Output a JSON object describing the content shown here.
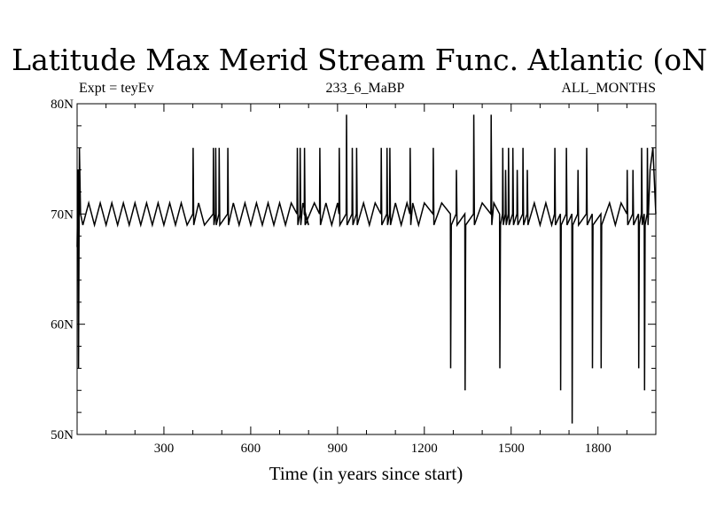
{
  "chart_data": {
    "type": "line",
    "title": "Latitude Max Merid Stream Func. Atlantic (oN)",
    "subtitle_left": "Expt = teyEv",
    "subtitle_center": "233_6_MaBP",
    "subtitle_right": "ALL_MONTHS",
    "xlabel": "Time (in years since start)",
    "ylabel": "",
    "xlim": [
      0,
      2000
    ],
    "ylim": [
      50,
      80
    ],
    "x_ticks": [
      300,
      600,
      900,
      1200,
      1500,
      1800
    ],
    "x_tick_labels": [
      "300",
      "600",
      "900",
      "1200",
      "1500",
      "1800"
    ],
    "y_ticks": [
      50,
      60,
      70,
      80
    ],
    "y_tick_labels": [
      "50N",
      "60N",
      "70N",
      "80N"
    ],
    "grid": false,
    "legend": "none",
    "line_color": "#000000",
    "series": [
      {
        "x": [
          0,
          3,
          5,
          8,
          12,
          20,
          40,
          60,
          80,
          100,
          120,
          140,
          160,
          180,
          200,
          220,
          240,
          260,
          280,
          300,
          320,
          340,
          360,
          380,
          400,
          401,
          403,
          420,
          440,
          470,
          471,
          473,
          478,
          479,
          481,
          490,
          491,
          493,
          520,
          521,
          523,
          540,
          560,
          580,
          600,
          620,
          640,
          660,
          680,
          700,
          720,
          740,
          760,
          761,
          763,
          770,
          771,
          773,
          780,
          800,
          785,
          786,
          788,
          820,
          838,
          839,
          841,
          860,
          880,
          900,
          905,
          906,
          908,
          930,
          931,
          933,
          950,
          951,
          953,
          965,
          966,
          968,
          990,
          1010,
          1030,
          1050,
          1051,
          1053,
          1070,
          1071,
          1073,
          1080,
          1081,
          1083,
          1100,
          1120,
          1140,
          1150,
          1151,
          1153,
          1160,
          1180,
          1200,
          1230,
          1231,
          1233,
          1260,
          1290,
          1291,
          1293,
          1310,
          1311,
          1313,
          1340,
          1341,
          1343,
          1370,
          1371,
          1373,
          1400,
          1430,
          1431,
          1433,
          1440,
          1460,
          1461,
          1463,
          1470,
          1471,
          1473,
          1480,
          1481,
          1483,
          1490,
          1491,
          1493,
          1505,
          1506,
          1508,
          1520,
          1521,
          1523,
          1540,
          1541,
          1543,
          1555,
          1556,
          1558,
          1580,
          1600,
          1620,
          1640,
          1650,
          1651,
          1653,
          1670,
          1671,
          1673,
          1690,
          1691,
          1693,
          1710,
          1711,
          1713,
          1730,
          1731,
          1733,
          1760,
          1761,
          1763,
          1780,
          1781,
          1783,
          1810,
          1811,
          1813,
          1840,
          1860,
          1880,
          1900,
          1901,
          1903,
          1920,
          1921,
          1923,
          1940,
          1941,
          1943,
          1950,
          1951,
          1953,
          1960,
          1961,
          1963,
          1970,
          1971,
          1973,
          1980,
          1990,
          2000
        ],
        "values": [
          67,
          74,
          56,
          76,
          70,
          69,
          71,
          69,
          71,
          69,
          71,
          69,
          71,
          69,
          71,
          69,
          71,
          69,
          71,
          69,
          71,
          69,
          71,
          69,
          70,
          76,
          69,
          71,
          69,
          70,
          76,
          69,
          70,
          76,
          69,
          70,
          76,
          69,
          70,
          76,
          69,
          71,
          69,
          71,
          69,
          71,
          69,
          71,
          69,
          71,
          69,
          71,
          70,
          76,
          69,
          70,
          76,
          69,
          71,
          69,
          70,
          76,
          69,
          71,
          70,
          76,
          69,
          71,
          69,
          71,
          70,
          76,
          69,
          70,
          79,
          69,
          70,
          76,
          69,
          70,
          76,
          69,
          71,
          69,
          71,
          70,
          76,
          69,
          70,
          76,
          69,
          70,
          76,
          69,
          71,
          69,
          71,
          70,
          76,
          69,
          71,
          69,
          71,
          70,
          76,
          69,
          71,
          70,
          56,
          69,
          70,
          74,
          69,
          70,
          54,
          69,
          70,
          79,
          69,
          71,
          70,
          79,
          69,
          71,
          70,
          56,
          69,
          70,
          76,
          69,
          70,
          74,
          69,
          70,
          76,
          69,
          70,
          76,
          69,
          70,
          74,
          69,
          70,
          76,
          69,
          70,
          74,
          69,
          71,
          69,
          71,
          69,
          70,
          76,
          69,
          70,
          54,
          69,
          70,
          76,
          69,
          70,
          51,
          69,
          70,
          74,
          69,
          70,
          76,
          69,
          70,
          56,
          69,
          70,
          56,
          69,
          71,
          69,
          71,
          70,
          74,
          69,
          70,
          74,
          69,
          70,
          56,
          69,
          70,
          76,
          69,
          70,
          54,
          69,
          70,
          76,
          69,
          74,
          76,
          70
        ]
      }
    ]
  }
}
